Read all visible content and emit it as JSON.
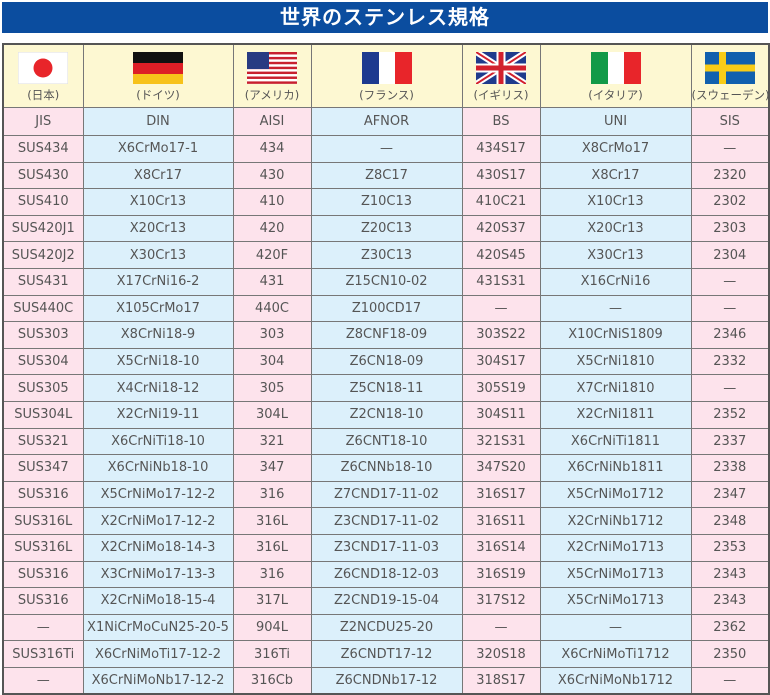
{
  "title": "世界のステンレス規格",
  "countries": [
    {
      "name": "(日本)",
      "code": "JIS",
      "flag": "japan-flag"
    },
    {
      "name": "(ドイツ)",
      "code": "DIN",
      "flag": "germany-flag"
    },
    {
      "name": "(アメリカ)",
      "code": "AISI",
      "flag": "usa-flag"
    },
    {
      "name": "(フランス)",
      "code": "AFNOR",
      "flag": "france-flag"
    },
    {
      "name": "(イギリス)",
      "code": "BS",
      "flag": "uk-flag"
    },
    {
      "name": "(イタリア)",
      "code": "UNI",
      "flag": "italy-flag"
    },
    {
      "name": "(スウェーデン)",
      "code": "SIS",
      "flag": "sweden-flag"
    }
  ],
  "colors": {
    "title_bg": "#0b4d9f",
    "header_bg": "#fdf8d2",
    "pink": "#fde3ec",
    "blue": "#dcf0fb"
  },
  "rows": [
    [
      "SUS434",
      "X6CrMo17-1",
      "434",
      "—",
      "434S17",
      "X8CrMo17",
      "—"
    ],
    [
      "SUS430",
      "X8Cr17",
      "430",
      "Z8C17",
      "430S17",
      "X8Cr17",
      "2320"
    ],
    [
      "SUS410",
      "X10Cr13",
      "410",
      "Z10C13",
      "410C21",
      "X10Cr13",
      "2302"
    ],
    [
      "SUS420J1",
      "X20Cr13",
      "420",
      "Z20C13",
      "420S37",
      "X20Cr13",
      "2303"
    ],
    [
      "SUS420J2",
      "X30Cr13",
      "420F",
      "Z30C13",
      "420S45",
      "X30Cr13",
      "2304"
    ],
    [
      "SUS431",
      "X17CrNi16-2",
      "431",
      "Z15CN10-02",
      "431S31",
      "X16CrNi16",
      "—"
    ],
    [
      "SUS440C",
      "X105CrMo17",
      "440C",
      "Z100CD17",
      "—",
      "—",
      "—"
    ],
    [
      "SUS303",
      "X8CrNi18-9",
      "303",
      "Z8CNF18-09",
      "303S22",
      "X10CrNiS1809",
      "2346"
    ],
    [
      "SUS304",
      "X5CrNi18-10",
      "304",
      "Z6CN18-09",
      "304S17",
      "X5CrNi1810",
      "2332"
    ],
    [
      "SUS305",
      "X4CrNi18-12",
      "305",
      "Z5CN18-11",
      "305S19",
      "X7CrNi1810",
      "—"
    ],
    [
      "SUS304L",
      "X2CrNi19-11",
      "304L",
      "Z2CN18-10",
      "304S11",
      "X2CrNi1811",
      "2352"
    ],
    [
      "SUS321",
      "X6CrNiTi18-10",
      "321",
      "Z6CNT18-10",
      "321S31",
      "X6CrNiTi1811",
      "2337"
    ],
    [
      "SUS347",
      "X6CrNiNb18-10",
      "347",
      "Z6CNNb18-10",
      "347S20",
      "X6CrNiNb1811",
      "2338"
    ],
    [
      "SUS316",
      "X5CrNiMo17-12-2",
      "316",
      "Z7CND17-11-02",
      "316S17",
      "X5CrNiMo1712",
      "2347"
    ],
    [
      "SUS316L",
      "X2CrNiMo17-12-2",
      "316L",
      "Z3CND17-11-02",
      "316S11",
      "X2CrNiNb1712",
      "2348"
    ],
    [
      "SUS316L",
      "X2CrNiMo18-14-3",
      "316L",
      "Z3CND17-11-03",
      "316S14",
      "X2CrNiMo1713",
      "2353"
    ],
    [
      "SUS316",
      "X3CrNiMo17-13-3",
      "316",
      "Z6CND18-12-03",
      "316S19",
      "X5CrNiMo1713",
      "2343"
    ],
    [
      "SUS316",
      "X2CrNiMo18-15-4",
      "317L",
      "Z2CND19-15-04",
      "317S12",
      "X5CrNiMo1713",
      "2343"
    ],
    [
      "—",
      "X1NiCrMoCuN25-20-5",
      "904L",
      "Z2NCDU25-20",
      "—",
      "—",
      "2362"
    ],
    [
      "SUS316Ti",
      "X6CrNiMoTi17-12-2",
      "316Ti",
      "Z6CNDT17-12",
      "320S18",
      "X6CrNiMoTi1712",
      "2350"
    ],
    [
      "—",
      "X6CrNiMoNb17-12-2",
      "316Cb",
      "Z6CNDNb17-12",
      "318S17",
      "X6CrNiMoNb1712",
      "—"
    ]
  ]
}
